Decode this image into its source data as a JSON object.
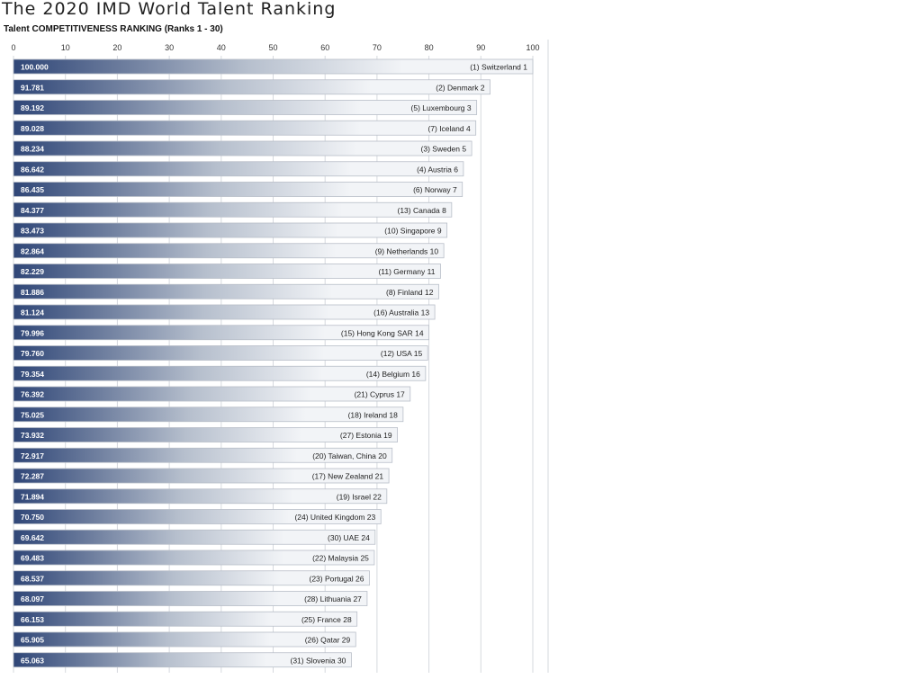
{
  "title": "The 2020 IMD World Talent Ranking",
  "subtitle": "Talent COMPETITIVENESS RANKING (Ranks 1 - 30)",
  "colors": {
    "bar_dark": "#2f4677",
    "bar_light": "#f2f4f7",
    "bar_stroke": "#b8bec8",
    "grid": "#d6d9de"
  },
  "chart_data": {
    "type": "bar",
    "orientation": "horizontal",
    "title": "The 2020 IMD World Talent Ranking",
    "subtitle": "Talent COMPETITIVENESS RANKING (Ranks 1 - 30)",
    "xlim": [
      0,
      100
    ],
    "xticks": [
      0,
      10,
      20,
      30,
      40,
      50,
      60,
      70,
      80,
      90,
      100
    ],
    "grid": true,
    "categories": [
      "(1) Switzerland 1",
      "(2) Denmark 2",
      "(5) Luxembourg 3",
      "(7) Iceland 4",
      "(3) Sweden 5",
      "(4) Austria 6",
      "(6) Norway 7",
      "(13) Canada 8",
      "(10) Singapore 9",
      "(9) Netherlands 10",
      "(11) Germany 11",
      "(8) Finland 12",
      "(16) Australia 13",
      "(15) Hong Kong SAR 14",
      "(12) USA 15",
      "(14) Belgium 16",
      "(21) Cyprus 17",
      "(18) Ireland 18",
      "(27) Estonia 19",
      "(20) Taiwan, China 20",
      "(17) New Zealand 21",
      "(19) Israel 22",
      "(24) United Kingdom 23",
      "(30) UAE 24",
      "(22) Malaysia 25",
      "(23) Portugal 26",
      "(28) Lithuania 27",
      "(25) France 28",
      "(26) Qatar 29",
      "(31) Slovenia 30"
    ],
    "value_labels": [
      "100.000",
      "91.781",
      "89.192",
      "89.028",
      "88.234",
      "86.642",
      "86.435",
      "84.377",
      "83.473",
      "82.864",
      "82.229",
      "81.886",
      "81.124",
      "79.996",
      "79.760",
      "79.354",
      "76.392",
      "75.025",
      "73.932",
      "72.917",
      "72.287",
      "71.894",
      "70.750",
      "69.642",
      "69.483",
      "68.537",
      "68.097",
      "66.153",
      "65.905",
      "65.063"
    ],
    "values": [
      100.0,
      91.781,
      89.192,
      89.028,
      88.234,
      86.642,
      86.435,
      84.377,
      83.473,
      82.864,
      82.229,
      81.886,
      81.124,
      79.996,
      79.76,
      79.354,
      76.392,
      75.025,
      73.932,
      72.917,
      72.287,
      71.894,
      70.75,
      69.642,
      69.483,
      68.537,
      68.097,
      66.153,
      65.905,
      65.063
    ]
  }
}
